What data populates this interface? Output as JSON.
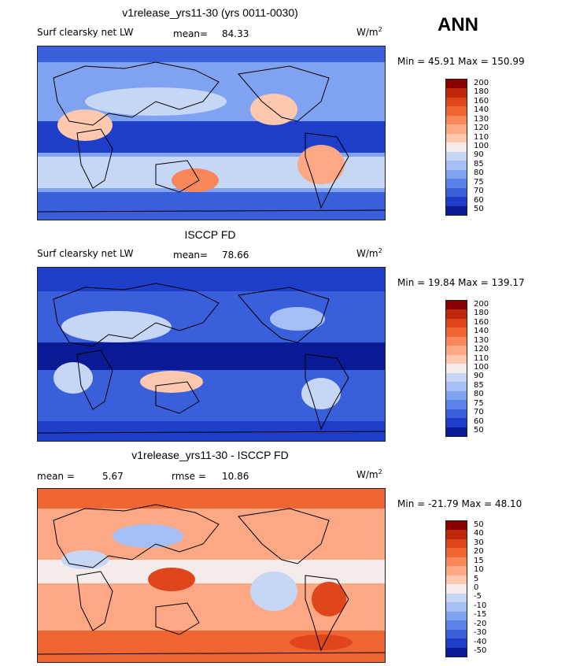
{
  "season": "ANN",
  "panels": [
    {
      "title": "v1release_yrs11-30 (yrs 0011-0030)",
      "left_label": "Surf clearsky net LW",
      "stat1_label": "mean=",
      "stat1_value": "84.33",
      "units": "W/m",
      "units_sup": "2",
      "minmax": "Min =  45.91 Max = 150.99",
      "levels": [
        "200",
        "180",
        "160",
        "140",
        "130",
        "120",
        "110",
        "100",
        "90",
        "85",
        "80",
        "75",
        "70",
        "60",
        "50"
      ],
      "palette": [
        "#8a0000",
        "#c0280a",
        "#e0461c",
        "#f06632",
        "#f8875a",
        "#fca884",
        "#fdc8ad",
        "#f3ecea",
        "#c6d6f5",
        "#a5bff5",
        "#7fa3f0",
        "#5b82e8",
        "#3a5fdb",
        "#1e3dc8",
        "#0a1a95"
      ]
    },
    {
      "title": "ISCCP FD",
      "left_label": "Surf clearsky net LW",
      "stat1_label": "mean=",
      "stat1_value": "78.66",
      "units": "W/m",
      "units_sup": "2",
      "minmax": "Min =  19.84 Max = 139.17",
      "levels": [
        "200",
        "180",
        "160",
        "140",
        "130",
        "120",
        "110",
        "100",
        "90",
        "85",
        "80",
        "75",
        "70",
        "60",
        "50"
      ],
      "palette": [
        "#8a0000",
        "#c0280a",
        "#e0461c",
        "#f06632",
        "#f8875a",
        "#fca884",
        "#fdc8ad",
        "#f3ecea",
        "#c6d6f5",
        "#a5bff5",
        "#7fa3f0",
        "#5b82e8",
        "#3a5fdb",
        "#1e3dc8",
        "#0a1a95"
      ]
    },
    {
      "title": "v1release_yrs11-30 - ISCCP FD",
      "left_label": "",
      "stat1_label": "mean =",
      "stat1_value": "5.67",
      "stat2_label": "rmse =",
      "stat2_value": "10.86",
      "units": "W/m",
      "units_sup": "2",
      "minmax": "Min = -21.79 Max =  48.10",
      "levels": [
        "50",
        "40",
        "30",
        "20",
        "15",
        "10",
        "5",
        "0",
        "-5",
        "-10",
        "-15",
        "-20",
        "-30",
        "-40",
        "-50"
      ],
      "palette": [
        "#8a0000",
        "#c0280a",
        "#e0461c",
        "#f06632",
        "#f8875a",
        "#fca884",
        "#fdc8ad",
        "#f3ecea",
        "#c6d6f5",
        "#a5bff5",
        "#7fa3f0",
        "#5b82e8",
        "#3a5fdb",
        "#1e3dc8",
        "#0a1a95"
      ]
    }
  ]
}
